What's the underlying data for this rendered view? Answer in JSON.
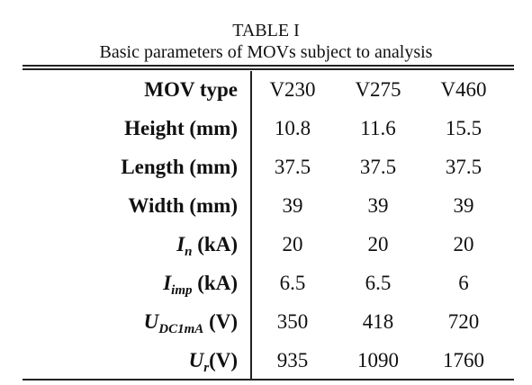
{
  "caption": {
    "label": "TABLE I",
    "title": "Basic parameters of MOVs subject to analysis"
  },
  "table": {
    "header": {
      "label": "MOV type",
      "columns": [
        "V230",
        "V275",
        "V460"
      ]
    },
    "rows": [
      {
        "label": {
          "text": "Height (mm)"
        },
        "cells": [
          "10.8",
          "11.6",
          "15.5"
        ]
      },
      {
        "label": {
          "text": "Length (mm)"
        },
        "cells": [
          "37.5",
          "37.5",
          "37.5"
        ]
      },
      {
        "label": {
          "text": "Width (mm)"
        },
        "cells": [
          "39",
          "39",
          "39"
        ]
      },
      {
        "label": {
          "symbol": "I",
          "sub": "n",
          "unit": " (kA)"
        },
        "cells": [
          "20",
          "20",
          "20"
        ]
      },
      {
        "label": {
          "symbol": "I",
          "sub": "imp",
          "unit": " (kA)"
        },
        "cells": [
          "6.5",
          "6.5",
          "6"
        ]
      },
      {
        "label": {
          "symbol": "U",
          "sub": "DC1mA",
          "unit": " (V)"
        },
        "cells": [
          "350",
          "418",
          "720"
        ]
      },
      {
        "label": {
          "symbol": "U",
          "sub": "r",
          "unit": "(V)"
        },
        "cells": [
          "935",
          "1090",
          "1760"
        ]
      }
    ]
  }
}
